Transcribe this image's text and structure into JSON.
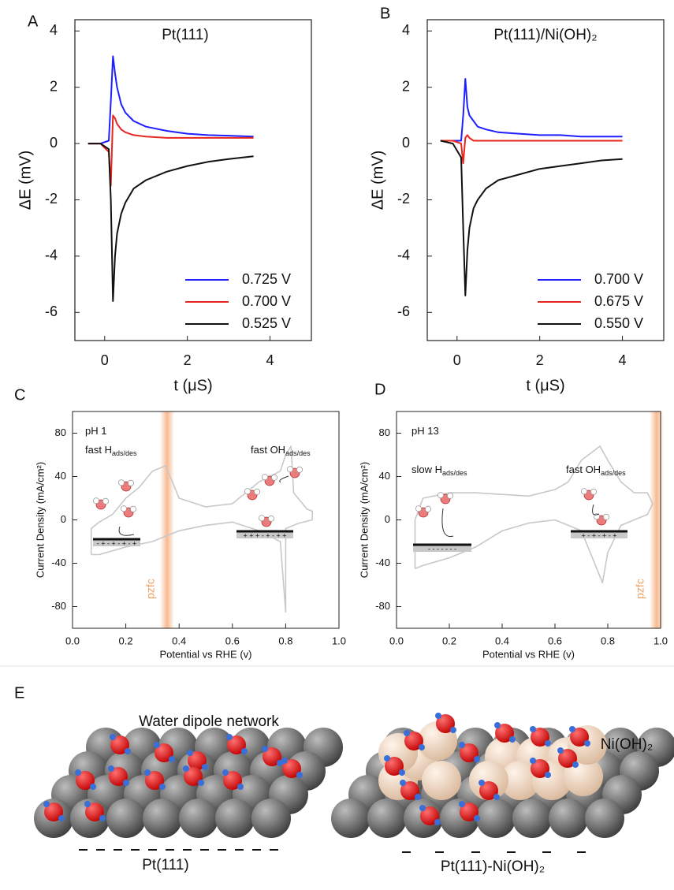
{
  "chart_data": [
    {
      "type": "line",
      "panel": "A",
      "title": "Pt(111)",
      "x_label": "t (μS)",
      "y_label": "ΔE (mV)",
      "x": [
        -0.4,
        -0.1,
        0.1,
        0.15,
        0.2,
        0.25,
        0.3,
        0.4,
        0.5,
        0.7,
        1.0,
        1.5,
        2.0,
        2.5,
        3.0,
        3.6
      ],
      "series": [
        {
          "name": "0.725 V",
          "color": "#1f1fff",
          "values": [
            0,
            0,
            0.1,
            1.5,
            3.1,
            2.5,
            2.0,
            1.4,
            1.1,
            0.8,
            0.6,
            0.45,
            0.35,
            0.3,
            0.28,
            0.25
          ]
        },
        {
          "name": "0.700 V",
          "color": "#e8261e",
          "values": [
            0,
            0,
            -0.3,
            -1.5,
            1.0,
            0.9,
            0.7,
            0.5,
            0.4,
            0.3,
            0.25,
            0.2,
            0.2,
            0.2,
            0.2,
            0.2
          ]
        },
        {
          "name": "0.525 V",
          "color": "#111111",
          "values": [
            0,
            0,
            -0.2,
            -2,
            -5.6,
            -4,
            -3.2,
            -2.5,
            -2.1,
            -1.6,
            -1.3,
            -1.0,
            -0.8,
            -0.65,
            -0.55,
            -0.45
          ]
        }
      ],
      "xlim": [
        -0.72,
        5
      ],
      "xticks": [
        0,
        2,
        4
      ],
      "ylim": [
        -7,
        4.4
      ],
      "yticks": [
        -6,
        -4,
        -2,
        0,
        2,
        4
      ],
      "legend": "lower right"
    },
    {
      "type": "line",
      "panel": "B",
      "title": "Pt(111)/Ni(OH)₂",
      "x_label": "t (μS)",
      "y_label": "ΔE (mV)",
      "x": [
        -0.4,
        -0.1,
        0.1,
        0.15,
        0.2,
        0.25,
        0.3,
        0.4,
        0.5,
        0.7,
        1.0,
        1.5,
        2.0,
        2.5,
        3.0,
        3.5,
        4.0
      ],
      "series": [
        {
          "name": "0.700 V",
          "color": "#1f1fff",
          "values": [
            0.1,
            0.1,
            0.1,
            1.0,
            2.3,
            1.3,
            1.0,
            0.8,
            0.6,
            0.5,
            0.4,
            0.35,
            0.3,
            0.3,
            0.25,
            0.25,
            0.25
          ]
        },
        {
          "name": "0.675 V",
          "color": "#e8261e",
          "values": [
            0.1,
            0.1,
            0,
            -0.7,
            0.2,
            0.3,
            0.2,
            0.1,
            0.1,
            0.1,
            0.1,
            0.1,
            0.1,
            0.1,
            0.1,
            0.1,
            0.1
          ]
        },
        {
          "name": "0.550 V",
          "color": "#111111",
          "values": [
            0.1,
            0,
            -0.5,
            -3,
            -5.4,
            -3.8,
            -3,
            -2.3,
            -2,
            -1.6,
            -1.3,
            -1.1,
            -0.9,
            -0.8,
            -0.7,
            -0.6,
            -0.55
          ]
        }
      ],
      "xlim": [
        -0.72,
        5
      ],
      "xticks": [
        0,
        2,
        4
      ],
      "ylim": [
        -7,
        4.4
      ],
      "yticks": [
        -6,
        -4,
        -2,
        0,
        2,
        4
      ],
      "legend": "lower right"
    },
    {
      "type": "line",
      "panel": "C",
      "x_label": "Potential vs RHE (v)",
      "y_label": "Current Density (mA/cm²)",
      "x": [
        0.07,
        0.07,
        0.1,
        0.15,
        0.2,
        0.25,
        0.3,
        0.35,
        0.4,
        0.5,
        0.6,
        0.65,
        0.7,
        0.78,
        0.8,
        0.82,
        0.83,
        0.88,
        0.9,
        0.9,
        0.85,
        0.8,
        0.8,
        0.78,
        0.7,
        0.6,
        0.5,
        0.4,
        0.3,
        0.2,
        0.1,
        0.07
      ],
      "series": [
        {
          "color": "#c8c8c8",
          "values": [
            -32,
            -8,
            -2,
            5,
            20,
            30,
            45,
            50,
            20,
            12,
            15,
            25,
            35,
            45,
            60,
            68,
            25,
            10,
            8,
            0,
            -3,
            -8,
            -85,
            -20,
            -10,
            -2,
            -5,
            -10,
            -20,
            -25,
            -32,
            -32
          ]
        }
      ],
      "xlim": [
        0,
        1
      ],
      "xticks": [
        {
          "value": 0,
          "label": "0.0"
        },
        0.2,
        0.4,
        0.6,
        0.8,
        {
          "value": 1,
          "label": "1.0"
        }
      ],
      "ylim": [
        -100,
        100
      ],
      "yticks": [
        -80,
        -40,
        0,
        40,
        80
      ],
      "pzfc_x": 0.355,
      "pzfc_label": "pzfc",
      "annotations": [
        {
          "text": "pH 1"
        },
        {
          "text": "fast H",
          "subscript": "ads/des"
        },
        {
          "text": "fast OH",
          "subscript": "ads/des"
        }
      ],
      "surface_charges": [
        "- + - + - + - +",
        "+ + + - + - + +"
      ]
    },
    {
      "type": "line",
      "panel": "D",
      "x_label": "Potential vs RHE (v)",
      "y_label": "Current Density (mA/cm²)",
      "x": [
        0.07,
        0.07,
        0.1,
        0.2,
        0.3,
        0.5,
        0.6,
        0.65,
        0.7,
        0.77,
        0.8,
        0.85,
        0.9,
        0.95,
        0.97,
        0.95,
        0.85,
        0.8,
        0.78,
        0.75,
        0.7,
        0.6,
        0.5,
        0.4,
        0.3,
        0.2,
        0.1,
        0.07
      ],
      "series": [
        {
          "color": "#c8c8c8",
          "values": [
            -45,
            0,
            20,
            25,
            25,
            22,
            28,
            35,
            55,
            68,
            55,
            35,
            25,
            25,
            15,
            5,
            -5,
            -30,
            -58,
            -40,
            -10,
            0,
            -3,
            -10,
            -25,
            -35,
            -42,
            -45
          ]
        }
      ],
      "xlim": [
        0,
        1
      ],
      "xticks": [
        {
          "value": 0,
          "label": "0.0"
        },
        0.2,
        0.4,
        0.6,
        0.8,
        {
          "value": 1,
          "label": "1.0"
        }
      ],
      "ylim": [
        -100,
        100
      ],
      "yticks": [
        -80,
        -40,
        0,
        40,
        80
      ],
      "pzfc_x": 0.985,
      "pzfc_label": "pzfc",
      "annotations": [
        {
          "text": "pH 13"
        },
        {
          "text": "slow H",
          "subscript": "ads/des"
        },
        {
          "text": "fast OH",
          "subscript": "ads/des"
        }
      ],
      "surface_charges": [
        "- - - - - - -",
        "+ - + - + - +"
      ]
    }
  ],
  "panel_e": {
    "label": "E",
    "title": "Water dipole network",
    "left_label": "Pt(111)",
    "ni_label": "Ni(OH)₂",
    "right_label": "Pt(111)-Ni(OH)₂"
  }
}
